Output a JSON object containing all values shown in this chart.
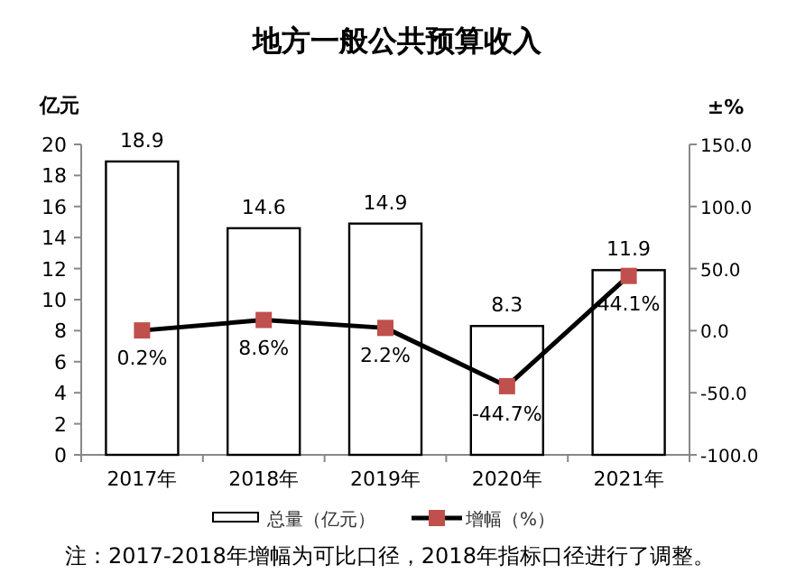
{
  "chart_data": {
    "type": "bar",
    "title": "地方一般公共预算收入",
    "ylabel": "亿元",
    "y2label": "±%",
    "categories": [
      "2017年",
      "2018年",
      "2019年",
      "2020年",
      "2021年"
    ],
    "series": [
      {
        "name": "总量（亿元）",
        "color": "#ffffff",
        "values": [
          18.9,
          14.6,
          14.9,
          8.3,
          11.9
        ],
        "value_labels": [
          "18.9",
          "14.6",
          "14.9",
          "8.3",
          "11.9"
        ]
      },
      {
        "name": "增幅（%）",
        "type": "line",
        "axis": "y2",
        "color": "#000000",
        "values": [
          0.2,
          8.6,
          2.2,
          -44.7,
          44.1
        ],
        "value_labels": [
          "0.2%",
          "8.6%",
          "2.2%",
          "-44.7%",
          "44.1%"
        ]
      }
    ],
    "ylim": [
      0,
      20
    ],
    "yticks": [
      0,
      2,
      4,
      6,
      8,
      10,
      12,
      14,
      16,
      18,
      20
    ],
    "y2lim": [
      -100,
      150
    ],
    "y2ticks": [
      {
        "value": -100,
        "label": "-100.0"
      },
      {
        "value": -50,
        "label": "-50.0"
      },
      {
        "value": 0,
        "label": "0.0"
      },
      {
        "value": 50,
        "label": "50.0"
      },
      {
        "value": 100,
        "label": "100.0"
      },
      {
        "value": 150,
        "label": "150.0"
      }
    ],
    "marker": "square",
    "legend": "bottom",
    "annotations": [
      "注：2017-2018年增幅为可比口径，2018年指标口径进行了调整。"
    ]
  }
}
